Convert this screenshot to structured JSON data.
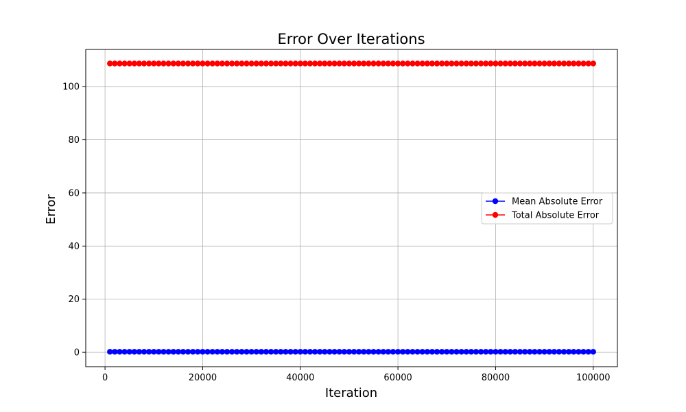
{
  "chart_data": {
    "type": "line",
    "title": "Error Over Iterations",
    "xlabel": "Iteration",
    "ylabel": "Error",
    "xlim": [
      -3950,
      104950
    ],
    "ylim": [
      -5.4,
      114.0
    ],
    "xticks": [
      0,
      20000,
      40000,
      60000,
      80000,
      100000
    ],
    "yticks": [
      0,
      20,
      40,
      60,
      80,
      100
    ],
    "grid": true,
    "legend_position": "center-right",
    "x_start": 1000,
    "x_step": 1000,
    "x_count": 100,
    "series": [
      {
        "name": "Mean Absolute Error",
        "color": "#0000ff",
        "marker": "circle",
        "constant_value": 0.2
      },
      {
        "name": "Total Absolute Error",
        "color": "#ff0000",
        "marker": "circle",
        "constant_value": 108.7
      }
    ]
  }
}
